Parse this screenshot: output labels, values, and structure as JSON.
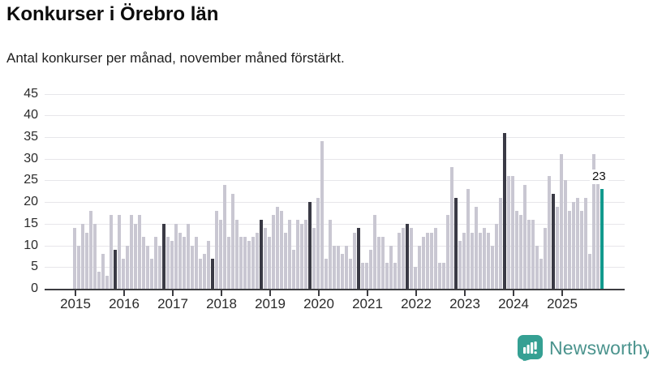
{
  "title": "Konkurser i Örebro län",
  "subtitle": "Antal konkurser per månad, november måned förstärkt.",
  "annotation": {
    "label": "23"
  },
  "logo": {
    "text": "Newsworthy"
  },
  "colors": {
    "bar_default": "#c9c7d2",
    "bar_november": "#3a3a45",
    "bar_current": "#12998d",
    "gridline": "#e7e6ea",
    "axis": "#3d3d41",
    "logo_teal": "#35a093",
    "logo_text": "#4a938d"
  },
  "chart_data": {
    "type": "bar",
    "title": "Konkurser i Örebro län",
    "subtitle": "Antal konkurser per månad, november månad förstärkt.",
    "xlabel": "",
    "ylabel": "",
    "ylim": [
      0,
      45
    ],
    "yticks": [
      0,
      5,
      10,
      15,
      20,
      25,
      30,
      35,
      40,
      45
    ],
    "grid": true,
    "legend": "none",
    "highlight_rule": "November bars dark; latest month (Nov 2025) teal with value label",
    "x_tick_labels": [
      "2015",
      "2016",
      "2017",
      "2018",
      "2019",
      "2020",
      "2021",
      "2022",
      "2023",
      "2024",
      "2025"
    ],
    "values_by_year": {
      "2015": [
        14,
        10,
        15,
        13,
        18,
        15,
        4,
        8,
        3,
        17,
        9,
        17
      ],
      "2016": [
        7,
        10,
        17,
        15,
        17,
        12,
        10,
        7,
        12,
        10,
        15,
        12
      ],
      "2017": [
        11,
        15,
        13,
        12,
        15,
        10,
        12,
        7,
        8,
        11,
        7,
        18
      ],
      "2018": [
        16,
        24,
        12,
        22,
        16,
        12,
        12,
        11,
        12,
        13,
        16,
        14
      ],
      "2019": [
        12,
        17,
        19,
        18,
        13,
        16,
        9,
        16,
        15,
        16,
        20,
        14
      ],
      "2020": [
        21,
        34,
        7,
        16,
        10,
        10,
        8,
        10,
        7,
        13,
        14,
        6
      ],
      "2021": [
        6,
        9,
        17,
        12,
        12,
        6,
        10,
        6,
        13,
        14,
        15,
        14
      ],
      "2022": [
        5,
        10,
        12,
        13,
        13,
        14,
        6,
        6,
        17,
        28,
        21,
        11
      ],
      "2023": [
        13,
        23,
        13,
        19,
        13,
        14,
        13,
        10,
        15,
        21,
        36,
        26
      ],
      "2024": [
        26,
        18,
        17,
        24,
        16,
        16,
        10,
        7,
        14,
        26,
        22,
        19
      ],
      "2025": [
        31,
        25,
        18,
        20,
        21,
        18,
        21,
        8,
        31,
        25,
        23
      ]
    },
    "november_values": {
      "2015": 9,
      "2016": 15,
      "2017": 7,
      "2018": 16,
      "2019": 20,
      "2020": 14,
      "2021": 15,
      "2022": 21,
      "2023": 36,
      "2024": 22,
      "2025": 23
    },
    "current_month": {
      "year": "2025",
      "month": "november",
      "value": 23
    }
  }
}
